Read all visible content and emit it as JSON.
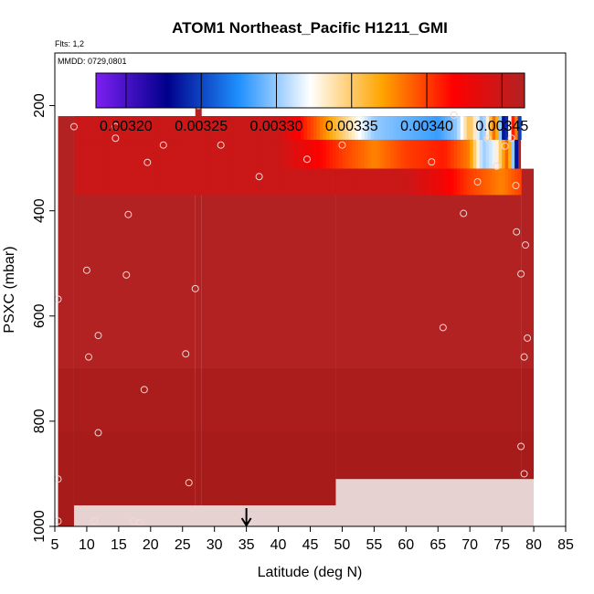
{
  "chart_data": {
    "type": "heatmap",
    "title": "ATOM1 Northeast_Pacific H1211_GMI",
    "flights_label": "Flts: 1,2",
    "dates_label": "MMDD: 0729,0801",
    "xlabel": "Latitude (deg N)",
    "ylabel": "PSXC (mbar)",
    "xlim": [
      5,
      85
    ],
    "ylim": [
      1000,
      100
    ],
    "x_ticks": [
      5,
      10,
      15,
      20,
      25,
      30,
      35,
      40,
      45,
      50,
      55,
      60,
      65,
      70,
      75,
      80,
      85
    ],
    "y_ticks": [
      200,
      400,
      600,
      800,
      1000
    ],
    "colorbar": {
      "range": [
        0.00318,
        0.003465
      ],
      "ticks": [
        "0.00320",
        "0.00325",
        "0.00330",
        "0.00335",
        "0.00340",
        "0.00345"
      ],
      "tick_values": [
        0.0032,
        0.00325,
        0.0033,
        0.00335,
        0.0034,
        0.00345
      ],
      "colors": [
        "#7d1ff2",
        "#00008b",
        "#1e90ff",
        "#ffffff",
        "#ffa500",
        "#ff0000",
        "#b22222"
      ]
    },
    "marker": {
      "x": 35,
      "direction": "down",
      "color": "#000000"
    },
    "grid": false,
    "legend": "top",
    "heatmap_extent": [
      {
        "p_top": 220,
        "p_bottom": 1000,
        "x_min": 5.5,
        "x_max": 8
      },
      {
        "p_top": 220,
        "p_bottom": 960,
        "x_min": 8,
        "x_max": 27
      },
      {
        "p_top": 170,
        "p_bottom": 960,
        "x_min": 27,
        "x_max": 28
      },
      {
        "p_top": 220,
        "p_bottom": 960,
        "x_min": 28,
        "x_max": 49
      },
      {
        "p_top": 220,
        "p_bottom": 910,
        "x_min": 49,
        "x_max": 78
      },
      {
        "p_top": 320,
        "p_bottom": 910,
        "x_min": 78,
        "x_max": 80
      }
    ],
    "gradient_bands": [
      {
        "p_top": 220,
        "p_bottom": 265,
        "values": [
          {
            "x": 5,
            "v": 0.00345
          },
          {
            "x": 40,
            "v": 0.00345
          },
          {
            "x": 45,
            "v": 0.0034
          },
          {
            "x": 50,
            "v": 0.00335
          },
          {
            "x": 55,
            "v": 0.0033
          },
          {
            "x": 60,
            "v": 0.00329
          },
          {
            "x": 65,
            "v": 0.00328
          },
          {
            "x": 68,
            "v": 0.0033
          },
          {
            "x": 70,
            "v": 0.00336
          },
          {
            "x": 72,
            "v": 0.00329
          },
          {
            "x": 74,
            "v": 0.0034
          },
          {
            "x": 75.5,
            "v": 0.0032
          },
          {
            "x": 77,
            "v": 0.00345
          },
          {
            "x": 78,
            "v": 0.00318
          }
        ]
      },
      {
        "p_top": 265,
        "p_bottom": 320,
        "values": [
          {
            "x": 5,
            "v": 0.00345
          },
          {
            "x": 40,
            "v": 0.00345
          },
          {
            "x": 50,
            "v": 0.0034
          },
          {
            "x": 55,
            "v": 0.00338
          },
          {
            "x": 60,
            "v": 0.0034
          },
          {
            "x": 66,
            "v": 0.00341
          },
          {
            "x": 70,
            "v": 0.00338
          },
          {
            "x": 72,
            "v": 0.0033
          },
          {
            "x": 74,
            "v": 0.00332
          },
          {
            "x": 76,
            "v": 0.0034
          },
          {
            "x": 77.5,
            "v": 0.0032
          }
        ]
      },
      {
        "p_top": 320,
        "p_bottom": 370,
        "values": [
          {
            "x": 5,
            "v": 0.00345
          },
          {
            "x": 60,
            "v": 0.00345
          },
          {
            "x": 65,
            "v": 0.00343
          },
          {
            "x": 70,
            "v": 0.0034
          },
          {
            "x": 75,
            "v": 0.00338
          },
          {
            "x": 78,
            "v": 0.0034
          }
        ]
      }
    ],
    "points": [
      [
        8,
        240
      ],
      [
        14.5,
        240
      ],
      [
        14.5,
        262
      ],
      [
        27.5,
        200
      ],
      [
        22,
        275
      ],
      [
        19.5,
        308
      ],
      [
        31,
        275
      ],
      [
        37,
        335
      ],
      [
        44.5,
        302
      ],
      [
        50,
        275
      ],
      [
        67.5,
        218
      ],
      [
        72.8,
        263
      ],
      [
        75.5,
        277
      ],
      [
        76.5,
        262
      ],
      [
        74.2,
        315
      ],
      [
        71.2,
        345
      ],
      [
        77.2,
        352
      ],
      [
        64,
        307
      ],
      [
        16.5,
        407
      ],
      [
        69,
        405
      ],
      [
        77.3,
        440
      ],
      [
        78.7,
        465
      ],
      [
        10,
        513
      ],
      [
        16.2,
        522
      ],
      [
        27,
        548
      ],
      [
        78,
        520
      ],
      [
        5.5,
        568
      ],
      [
        11.8,
        637
      ],
      [
        10.3,
        678
      ],
      [
        25.5,
        672
      ],
      [
        65.8,
        622
      ],
      [
        79,
        642
      ],
      [
        78.5,
        678
      ],
      [
        19,
        740
      ],
      [
        11.8,
        822
      ],
      [
        26,
        917
      ],
      [
        78,
        848
      ],
      [
        78.5,
        900
      ],
      [
        5.5,
        910
      ],
      [
        5.5,
        990
      ],
      [
        11.2,
        990
      ],
      [
        17.3,
        990
      ],
      [
        18.3,
        993
      ]
    ]
  }
}
